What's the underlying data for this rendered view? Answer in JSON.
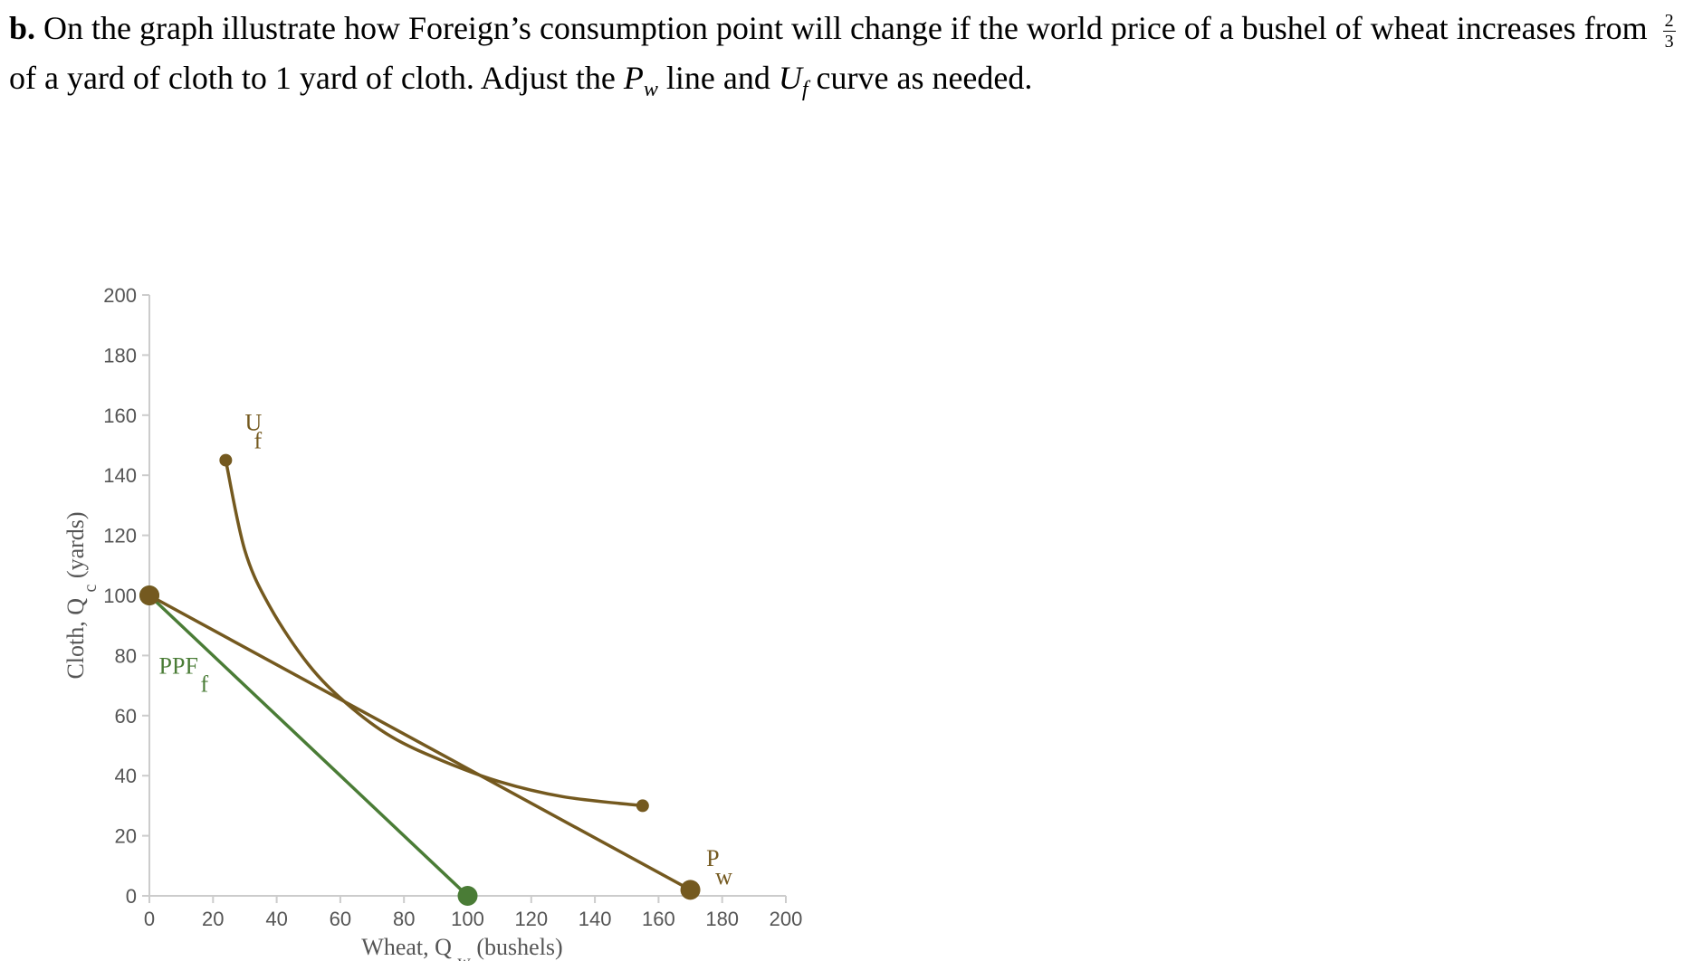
{
  "question": {
    "label": "b.",
    "text1": "On the graph illustrate how Foreign’s consumption point will change if the world price of a bushel of wheat increases from",
    "frac_num": "2",
    "frac_den": "3",
    "text2": "of a yard of cloth to 1 yard of cloth. Adjust the",
    "pw_main": "P",
    "pw_sub": "w",
    "text3": "line and",
    "uf_main": "U",
    "uf_sub": "f",
    "text4": "curve as needed."
  },
  "colors": {
    "ppf": "#4a7c36",
    "pw": "#74591f",
    "uf": "#74591f",
    "axis": "#cccccc",
    "text": "#555555"
  },
  "chart_data": {
    "type": "line",
    "xlabel_main": "Wheat, Q",
    "xlabel_sub": "w",
    "xlabel_unit": "(bushels)",
    "ylabel_main": "Cloth, Q",
    "ylabel_sub": "c",
    "ylabel_unit": "(yards)",
    "xlim": [
      0,
      200
    ],
    "ylim": [
      0,
      200
    ],
    "xticks": [
      0,
      20,
      40,
      60,
      80,
      100,
      120,
      140,
      160,
      180,
      200
    ],
    "yticks": [
      0,
      20,
      40,
      60,
      80,
      100,
      120,
      140,
      160,
      180,
      200
    ],
    "series": [
      {
        "name": "PPF",
        "sub": "f",
        "kind": "line",
        "points": [
          [
            0,
            100
          ],
          [
            100,
            0
          ]
        ]
      },
      {
        "name": "P",
        "sub": "w",
        "kind": "line",
        "points": [
          [
            0,
            100
          ],
          [
            170,
            2
          ]
        ]
      },
      {
        "name": "U",
        "sub": "f",
        "kind": "curve",
        "points": [
          [
            24,
            145
          ],
          [
            30,
            115
          ],
          [
            38,
            96
          ],
          [
            50,
            77
          ],
          [
            62,
            64
          ],
          [
            76,
            53
          ],
          [
            92,
            45
          ],
          [
            110,
            38
          ],
          [
            130,
            33
          ],
          [
            155,
            30
          ]
        ]
      }
    ],
    "handles": [
      {
        "series": "PPF",
        "points": [
          [
            0,
            100
          ],
          [
            100,
            0
          ]
        ]
      },
      {
        "series": "P",
        "points": [
          [
            0,
            100
          ],
          [
            170,
            2
          ]
        ]
      },
      {
        "series": "U",
        "points": [
          [
            24,
            145
          ],
          [
            155,
            30
          ]
        ]
      }
    ]
  }
}
